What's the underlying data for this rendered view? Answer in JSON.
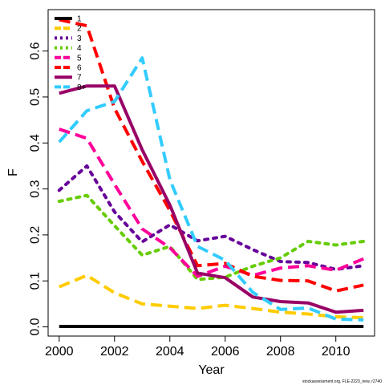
{
  "chart_data": {
    "type": "line",
    "xlabel": "Year",
    "ylabel": "F",
    "xlim": [
      1999.6,
      2011.4
    ],
    "ylim": [
      -0.02,
      0.69
    ],
    "x_ticks": [
      2000,
      2002,
      2004,
      2006,
      2008,
      2010
    ],
    "y_ticks": [
      0.0,
      0.1,
      0.2,
      0.3,
      0.4,
      0.5,
      0.6
    ],
    "x_tick_labels": [
      "2000",
      "2002",
      "2004",
      "2006",
      "2008",
      "2010"
    ],
    "y_tick_labels": [
      "0.0",
      "0.1",
      "0.2",
      "0.3",
      "0.4",
      "0.5",
      "0.6"
    ],
    "legend_position": "top-left",
    "grid": false,
    "x": [
      2000,
      2001,
      2002,
      2003,
      2004,
      2005,
      2006,
      2007,
      2008,
      2009,
      2010,
      2011
    ],
    "series": [
      {
        "name": "1",
        "color": "#000000",
        "dash": "solid",
        "values": [
          0.001,
          0.001,
          0.001,
          0.001,
          0.001,
          0.001,
          0.001,
          0.001,
          0.001,
          0.001,
          0.001,
          0.001
        ]
      },
      {
        "name": "2",
        "color": "#FFCC00",
        "dash": "dashed",
        "values": [
          0.087,
          0.112,
          0.074,
          0.05,
          0.045,
          0.04,
          0.047,
          0.04,
          0.032,
          0.028,
          0.022,
          0.02
        ]
      },
      {
        "name": "3",
        "color": "#660099",
        "dash": "dotted",
        "values": [
          0.297,
          0.35,
          0.25,
          0.185,
          0.222,
          0.187,
          0.197,
          0.168,
          0.142,
          0.14,
          0.125,
          0.133
        ]
      },
      {
        "name": "4",
        "color": "#66CC00",
        "dash": "dotted",
        "values": [
          0.273,
          0.286,
          0.22,
          0.156,
          0.175,
          0.103,
          0.108,
          0.132,
          0.15,
          0.186,
          0.178,
          0.186
        ]
      },
      {
        "name": "5",
        "color": "#FF0099",
        "dash": "dashed",
        "values": [
          0.43,
          0.41,
          0.31,
          0.213,
          0.172,
          0.11,
          0.132,
          0.112,
          0.128,
          0.133,
          0.123,
          0.148
        ]
      },
      {
        "name": "6",
        "color": "#FF0000",
        "dash": "dashed",
        "values": [
          0.668,
          0.655,
          0.475,
          0.36,
          0.253,
          0.133,
          0.138,
          0.11,
          0.101,
          0.1,
          0.078,
          0.091
        ]
      },
      {
        "name": "7",
        "color": "#990066",
        "dash": "solid",
        "values": [
          0.508,
          0.524,
          0.524,
          0.385,
          0.265,
          0.117,
          0.107,
          0.065,
          0.055,
          0.052,
          0.032,
          0.036
        ]
      },
      {
        "name": "8+",
        "color": "#33CCFF",
        "dash": "dashed",
        "values": [
          0.402,
          0.47,
          0.49,
          0.585,
          0.32,
          0.175,
          0.145,
          0.075,
          0.038,
          0.041,
          0.017,
          0.015
        ]
      }
    ]
  },
  "footer": "stockassessment.org, FLE-2223_new, r2740"
}
